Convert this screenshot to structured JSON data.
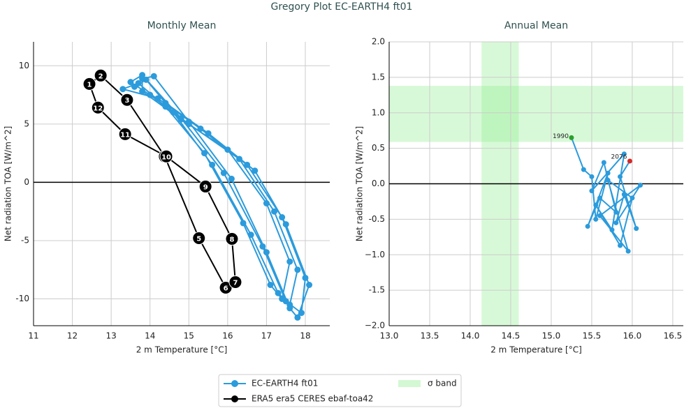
{
  "title": "Gregory Plot EC-EARTH4 ft01",
  "chart_data": [
    {
      "type": "line",
      "title": "Monthly Mean",
      "xlabel": "2 m Temperature [°C]",
      "ylabel": "Net radiation TOA [W/m^2]",
      "xlim": [
        11,
        18.63
      ],
      "ylim": [
        -12.3,
        12.05
      ],
      "xticks": [
        11,
        12,
        13,
        14,
        15,
        16,
        17,
        18
      ],
      "yticks": [
        -10,
        -5,
        0,
        5,
        10
      ],
      "grid": true,
      "hline": 0,
      "series": [
        {
          "name": "EC-EARTH4 ft01",
          "color": "#2b9bdc",
          "x": [
            13.6,
            13.9,
            14.6,
            15.6,
            16.6,
            17.3,
            17.6,
            17.8,
            17.2,
            16.3,
            15.0,
            14.0,
            13.5,
            13.8,
            14.8,
            15.9,
            16.9,
            17.5,
            17.9,
            18.0,
            17.4,
            16.5,
            15.3,
            14.2,
            13.3,
            13.7,
            14.4,
            15.4,
            16.4,
            17.1,
            17.4,
            17.6,
            17.0,
            16.0,
            14.8,
            13.8,
            13.8,
            14.1,
            15.0,
            16.1,
            17.0,
            17.6,
            17.8,
            18.1,
            17.5,
            16.7,
            15.5,
            14.4
          ],
          "y": [
            8.2,
            8.8,
            6.0,
            1.5,
            -4.5,
            -9.5,
            -10.5,
            -7.5,
            -2.5,
            2.0,
            5.0,
            7.5,
            8.6,
            9.2,
            5.5,
            0.8,
            -5.5,
            -10.2,
            -11.2,
            -8.2,
            -3.0,
            1.5,
            4.6,
            7.2,
            8.0,
            8.5,
            6.5,
            2.5,
            -3.5,
            -8.8,
            -10.0,
            -6.8,
            -1.8,
            2.8,
            5.4,
            7.8,
            8.9,
            9.1,
            5.2,
            0.3,
            -6.0,
            -10.8,
            -11.6,
            -8.8,
            -3.6,
            1.0,
            4.2,
            6.8
          ]
        },
        {
          "name": "ERA5 era5 CERES ebaf-toa42",
          "color": "#000000",
          "closed": true,
          "x": [
            12.44,
            12.73,
            13.41,
            14.38,
            15.26,
            15.95,
            16.2,
            16.11,
            15.43,
            14.42,
            13.36,
            12.66
          ],
          "y": [
            8.44,
            9.16,
            7.07,
            2.22,
            -4.79,
            -9.04,
            -8.56,
            -4.85,
            -0.36,
            2.22,
            4.13,
            6.41
          ],
          "labels": [
            "1",
            "2",
            "3",
            "4",
            "5",
            "6",
            "7",
            "8",
            "9",
            "10",
            "11",
            "12"
          ]
        }
      ]
    },
    {
      "type": "line",
      "title": "Annual Mean",
      "xlabel": "2 m Temperature [°C]",
      "ylabel": "Net radiation TOA [W/m^2]",
      "xlim": [
        13.0,
        16.63
      ],
      "ylim": [
        -2.0,
        2.0
      ],
      "xticks": [
        {
          "value": 13,
          "label": "13.0"
        },
        13.5,
        {
          "value": 14,
          "label": "14.0"
        },
        14.5,
        {
          "value": 15,
          "label": "15.0"
        },
        15.5,
        {
          "value": 16,
          "label": "16.0"
        },
        16.5
      ],
      "yticks": [
        {
          "value": -2,
          "label": "−2.0"
        },
        -1.5,
        {
          "value": -1,
          "label": "−1.0"
        },
        -0.5,
        {
          "value": 0,
          "label": "0.0"
        },
        0.5,
        {
          "value": 1,
          "label": "1.0"
        },
        1.5,
        {
          "value": 2,
          "label": "2.0"
        }
      ],
      "grid": true,
      "hline": 0,
      "sigma_band": {
        "name": "σ band",
        "color": "#90ee90",
        "x": [
          14.14,
          14.6
        ],
        "y": [
          0.59,
          1.38
        ]
      },
      "series": [
        {
          "name": "EC-EARTH4 ft01",
          "color": "#2b9bdc",
          "start_color": "#2ca02c",
          "end_color": "#d62728",
          "x": [
            15.25,
            15.4,
            15.5,
            15.55,
            15.7,
            15.45,
            15.6,
            15.8,
            15.65,
            15.5,
            15.9,
            15.75,
            15.55,
            15.85,
            16.0,
            15.7,
            15.95,
            15.6,
            16.1,
            15.8,
            15.9,
            16.05,
            15.85,
            15.97
          ],
          "y": [
            0.65,
            0.2,
            0.1,
            -0.5,
            0.15,
            -0.6,
            -0.2,
            -0.4,
            0.3,
            -0.1,
            0.42,
            -0.65,
            -0.3,
            -0.87,
            -0.2,
            0.05,
            -0.95,
            -0.45,
            -0.02,
            -0.55,
            -0.15,
            -0.63,
            0.1,
            0.32
          ],
          "annotations": [
            "1990",
            "2076"
          ]
        }
      ]
    }
  ]
}
